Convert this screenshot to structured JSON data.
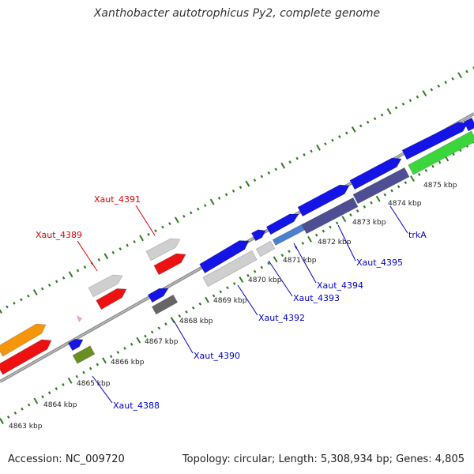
{
  "title": "Xanthobacter autotrophicus Py2, complete genome",
  "accession_label": "Accession: NC_009720",
  "info_label": "Topology: circular; Length: 5,308,934 bp; Genes: 4,805",
  "colors": {
    "backbone": "#9a9a9a",
    "tick": "#2e7d1e",
    "blue": "#1414e6",
    "red": "#ee1111",
    "light_gray": "#cfcfcf",
    "dark_gray": "#666666",
    "slate": "#4e4e94",
    "green": "#3bd63b",
    "steel": "#4d7fd0",
    "orange": "#f5950b",
    "olive": "#6b8e23",
    "pink": "#f29ad0"
  },
  "scale_labels": [
    "4863 kbp",
    "4864 kbp",
    "4865 kbp",
    "4866 kbp",
    "4867 kbp",
    "4868 kbp",
    "4869 kbp",
    "4870 kbp",
    "4871 kbp",
    "4872 kbp",
    "4873 kbp",
    "4874 kbp",
    "4875 kbp"
  ],
  "gene_labels": {
    "Xaut_4391": "Xaut_4391",
    "Xaut_4389": "Xaut_4389",
    "Xaut_4390": "Xaut_4390",
    "Xaut_4388": "Xaut_4388",
    "Xaut_4392": "Xaut_4392",
    "Xaut_4393": "Xaut_4393",
    "Xaut_4394": "Xaut_4394",
    "Xaut_4395": "Xaut_4395",
    "trkA": "trkA"
  }
}
